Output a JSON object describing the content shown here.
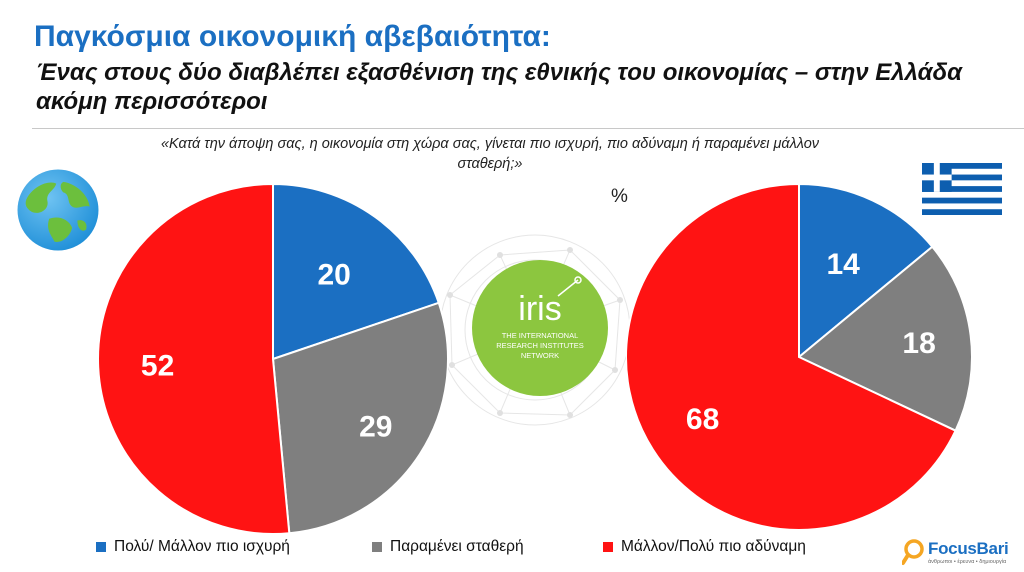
{
  "header": {
    "title": "Παγκόσμια οικονομική αβεβαιότητα:",
    "subtitle": "Ένας στους δύο διαβλέπει εξασθένιση της εθνικής του οικονομίας – στην Ελλάδα ακόμη περισσότεροι",
    "question": "«Κατά την άποψη σας, η οικονομία στη χώρα σας, γίνεται πιο ισχυρή, πιο αδύναμη ή παραμένει μάλλον σταθερή;»",
    "unit": "%"
  },
  "logos": {
    "iris_name": "iris",
    "iris_line1": "THE INTERNATIONAL",
    "iris_line2": "RESEARCH INSTITUTES",
    "iris_line3": "NETWORK",
    "focusbari_name": "FocusBari",
    "focusbari_tagline": "άνθρωποι • έρευνα • δημιουργία"
  },
  "icons": {
    "globe": "globe-icon",
    "flag": "greek-flag-icon"
  },
  "colors": {
    "stronger": "#1b6fc2",
    "stable": "#7f7f7f",
    "weaker": "#ff1313",
    "title": "#1b6fc2",
    "iris_green": "#8cc63f"
  },
  "chart_data": [
    {
      "type": "pie",
      "name": "global",
      "categories": [
        "Πολύ/ Μάλλον πιο ισχυρή",
        "Παραμένει σταθερή",
        "Μάλλον/Πολύ πιο αδύναμη"
      ],
      "values": [
        20,
        29,
        52
      ]
    },
    {
      "type": "pie",
      "name": "greece",
      "categories": [
        "Πολύ/ Μάλλον πιο ισχυρή",
        "Παραμένει σταθερή",
        "Μάλλον/Πολύ πιο αδύναμη"
      ],
      "values": [
        14,
        18,
        68
      ]
    }
  ],
  "legend": {
    "position": "bottom",
    "items": [
      {
        "label": "Πολύ/ Μάλλον πιο ισχυρή",
        "color": "#1b6fc2"
      },
      {
        "label": "Παραμένει σταθερή",
        "color": "#7f7f7f"
      },
      {
        "label": "Μάλλον/Πολύ πιο αδύναμη",
        "color": "#ff1313"
      }
    ]
  }
}
